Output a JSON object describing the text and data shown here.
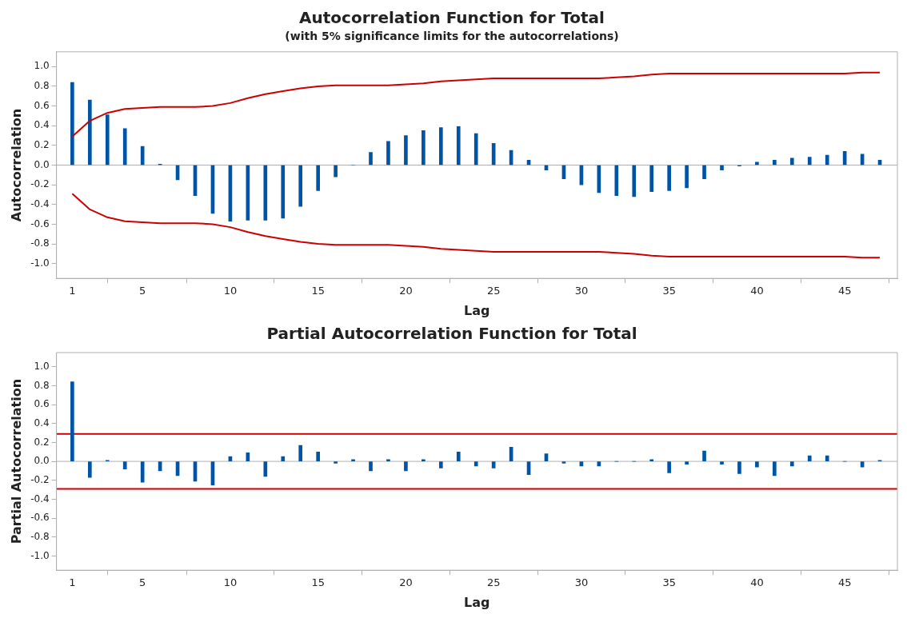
{
  "chart_data": [
    {
      "type": "bar",
      "title": "Autocorrelation Function for Total",
      "subtitle": "(with 5% significance limits for the autocorrelations)",
      "xlabel": "Lag",
      "ylabel": "Autocorrelation",
      "x": [
        1,
        2,
        3,
        4,
        5,
        6,
        7,
        8,
        9,
        10,
        11,
        12,
        13,
        14,
        15,
        16,
        17,
        18,
        19,
        20,
        21,
        22,
        23,
        24,
        25,
        26,
        27,
        28,
        29,
        30,
        31,
        32,
        33,
        34,
        35,
        36,
        37,
        38,
        39,
        40,
        41,
        42,
        43,
        44,
        45,
        46,
        47
      ],
      "series": [
        {
          "color": "#0054a6",
          "values": [
            0.84,
            0.66,
            0.51,
            0.37,
            0.19,
            0.01,
            -0.15,
            -0.31,
            -0.49,
            -0.57,
            -0.56,
            -0.56,
            -0.54,
            -0.42,
            -0.26,
            -0.12,
            0,
            0.13,
            0.24,
            0.3,
            0.35,
            0.38,
            0.39,
            0.32,
            0.22,
            0.15,
            0.05,
            -0.05,
            -0.14,
            -0.2,
            -0.28,
            -0.31,
            -0.32,
            -0.27,
            -0.26,
            -0.23,
            -0.14,
            -0.05,
            -0.01,
            0.03,
            0.05,
            0.07,
            0.08,
            0.1,
            0.14,
            0.11,
            0.05
          ]
        },
        {
          "type": "line",
          "color": "#cc0000",
          "marker": "none",
          "values": [
            0.29,
            0.45,
            0.53,
            0.57,
            0.58,
            0.59,
            0.59,
            0.59,
            0.6,
            0.63,
            0.68,
            0.72,
            0.75,
            0.78,
            0.8,
            0.81,
            0.81,
            0.81,
            0.81,
            0.82,
            0.83,
            0.85,
            0.86,
            0.87,
            0.88,
            0.88,
            0.88,
            0.88,
            0.88,
            0.88,
            0.88,
            0.89,
            0.9,
            0.92,
            0.93,
            0.93,
            0.93,
            0.93,
            0.93,
            0.93,
            0.93,
            0.93,
            0.93,
            0.93,
            0.93,
            0.94,
            0.94
          ]
        },
        {
          "type": "line",
          "color": "#cc0000",
          "marker": "none",
          "values": [
            -0.29,
            -0.45,
            -0.53,
            -0.57,
            -0.58,
            -0.59,
            -0.59,
            -0.59,
            -0.6,
            -0.63,
            -0.68,
            -0.72,
            -0.75,
            -0.78,
            -0.8,
            -0.81,
            -0.81,
            -0.81,
            -0.81,
            -0.82,
            -0.83,
            -0.85,
            -0.86,
            -0.87,
            -0.88,
            -0.88,
            -0.88,
            -0.88,
            -0.88,
            -0.88,
            -0.88,
            -0.89,
            -0.9,
            -0.92,
            -0.93,
            -0.93,
            -0.93,
            -0.93,
            -0.93,
            -0.93,
            -0.93,
            -0.93,
            -0.93,
            -0.93,
            -0.93,
            -0.94,
            -0.94
          ]
        }
      ],
      "ref_lines": [
        {
          "axis": "y",
          "value": 0,
          "color": "#b0b0b0"
        }
      ],
      "xlim": [
        0.1,
        48
      ],
      "xticks": [
        1,
        5,
        10,
        15,
        20,
        25,
        30,
        35,
        40,
        45
      ],
      "ylim": [
        -1.15,
        1.15
      ],
      "yticks": [
        {
          "value": -1,
          "label": "-1.0"
        },
        {
          "value": -0.8,
          "label": "-0.8"
        },
        {
          "value": -0.6,
          "label": "-0.6"
        },
        {
          "value": -0.4,
          "label": "-0.4"
        },
        {
          "value": -0.2,
          "label": "-0.2"
        },
        {
          "value": 0,
          "label": "0.0"
        },
        {
          "value": 0.2,
          "label": "0.2"
        },
        {
          "value": 0.4,
          "label": "0.4"
        },
        {
          "value": 0.6,
          "label": "0.6"
        },
        {
          "value": 0.8,
          "label": "0.8"
        },
        {
          "value": 1,
          "label": "1.0"
        }
      ],
      "legend": false
    },
    {
      "type": "bar",
      "title": "Partial Autocorrelation Function for Total",
      "xlabel": "Lag",
      "ylabel": "Partial Autocorrelation",
      "x": [
        1,
        2,
        3,
        4,
        5,
        6,
        7,
        8,
        9,
        10,
        11,
        12,
        13,
        14,
        15,
        16,
        17,
        18,
        19,
        20,
        21,
        22,
        23,
        24,
        25,
        26,
        27,
        28,
        29,
        30,
        31,
        32,
        33,
        34,
        35,
        36,
        37,
        38,
        39,
        40,
        41,
        42,
        43,
        44,
        45,
        46,
        47
      ],
      "series": [
        {
          "color": "#0054a6",
          "values": [
            0.84,
            -0.17,
            0.01,
            -0.08,
            -0.22,
            -0.1,
            -0.15,
            -0.21,
            -0.25,
            0.05,
            0.09,
            -0.16,
            0.05,
            0.17,
            0.1,
            -0.02,
            0.02,
            -0.1,
            0.02,
            -0.1,
            0.02,
            -0.07,
            0.1,
            -0.05,
            -0.07,
            0.15,
            -0.14,
            0.08,
            -0.02,
            -0.05,
            -0.05,
            0,
            0,
            0.02,
            -0.12,
            -0.03,
            0.11,
            -0.03,
            -0.13,
            -0.06,
            -0.15,
            -0.05,
            0.06,
            0.06,
            0,
            -0.06,
            0.01
          ]
        }
      ],
      "ref_lines": [
        {
          "axis": "y",
          "value": 0,
          "color": "#b0b0b0"
        },
        {
          "axis": "y",
          "value": 0.29,
          "color": "#cc0000"
        },
        {
          "axis": "y",
          "value": -0.29,
          "color": "#cc0000"
        }
      ],
      "xlim": [
        0.1,
        48
      ],
      "xticks": [
        1,
        5,
        10,
        15,
        20,
        25,
        30,
        35,
        40,
        45
      ],
      "ylim": [
        -1.15,
        1.15
      ],
      "yticks": [
        {
          "value": -1,
          "label": "-1.0"
        },
        {
          "value": -0.8,
          "label": "-0.8"
        },
        {
          "value": -0.6,
          "label": "-0.6"
        },
        {
          "value": -0.4,
          "label": "-0.4"
        },
        {
          "value": -0.2,
          "label": "-0.2"
        },
        {
          "value": 0,
          "label": "0.0"
        },
        {
          "value": 0.2,
          "label": "0.2"
        },
        {
          "value": 0.4,
          "label": "0.4"
        },
        {
          "value": 0.6,
          "label": "0.6"
        },
        {
          "value": 0.8,
          "label": "0.8"
        },
        {
          "value": 1,
          "label": "1.0"
        }
      ],
      "legend": false
    }
  ]
}
